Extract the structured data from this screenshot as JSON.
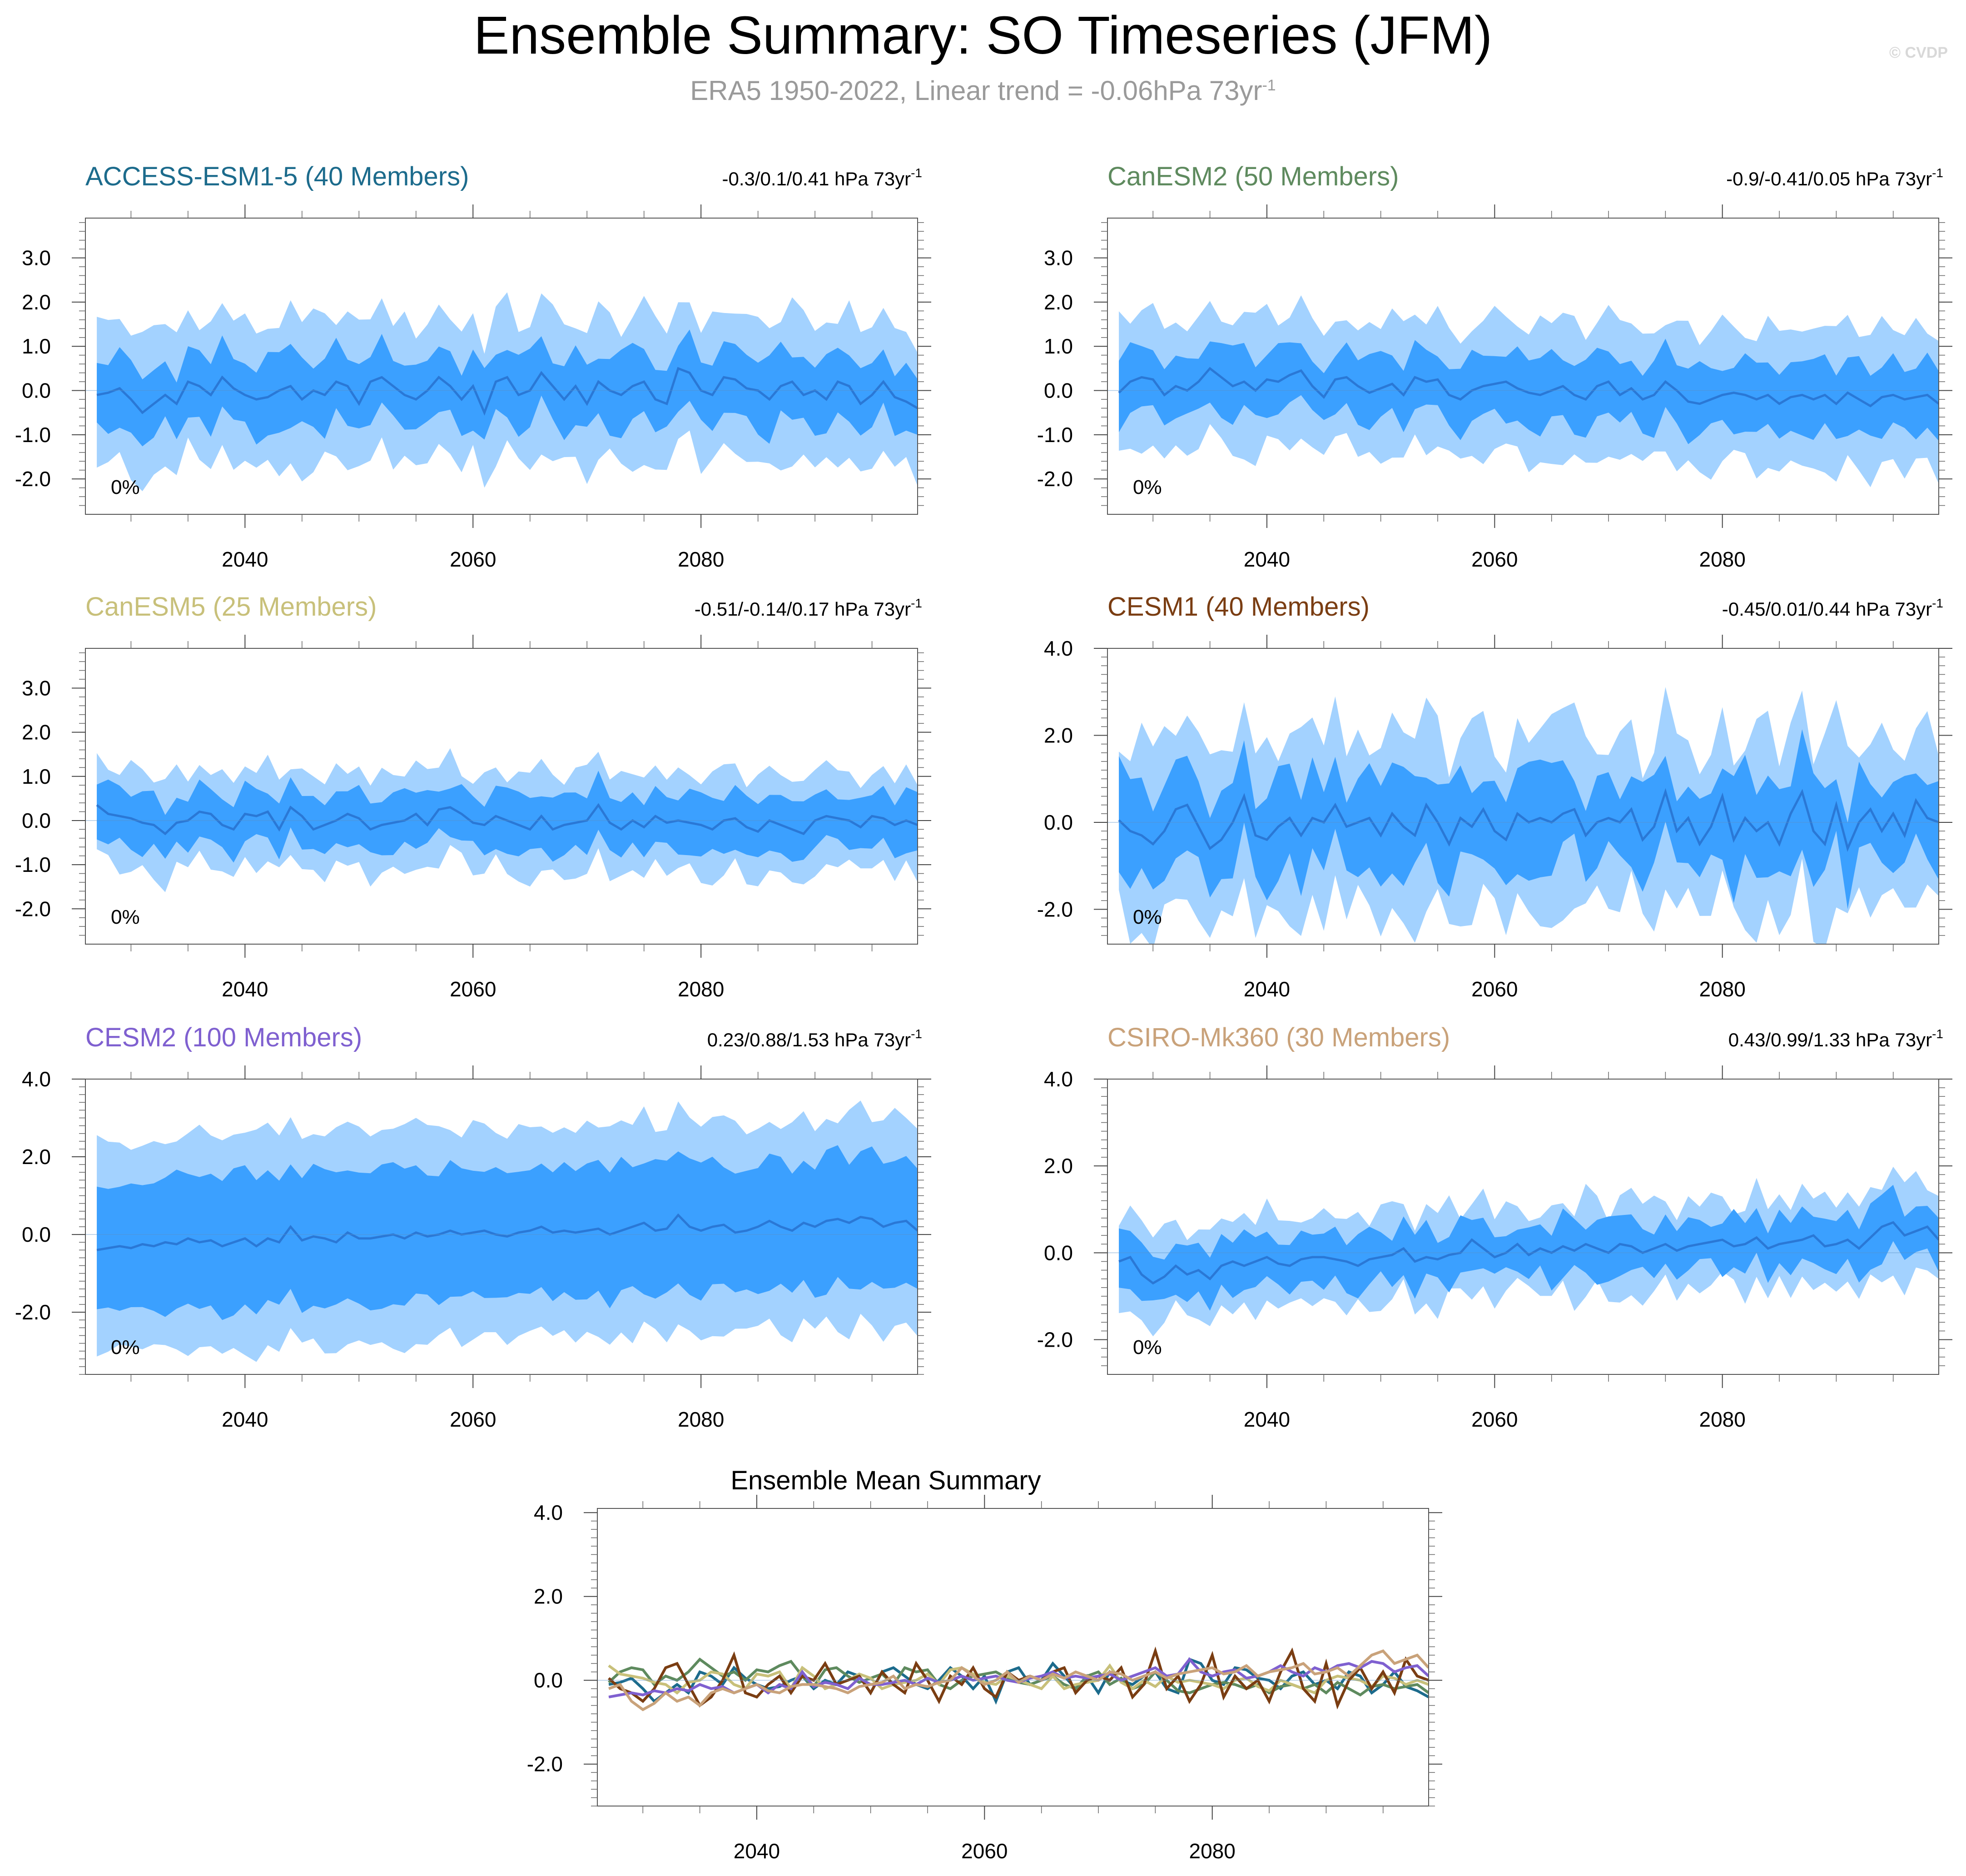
{
  "title": "Ensemble Summary: SO Timeseries (JFM)",
  "subtitle": "ERA5 1950-2022, Linear trend = -0.06hPa 73yr",
  "subtitle_sup": "-1",
  "copyright": "© CVDP",
  "colors": {
    "outer_band": "#a3d2ff",
    "inner_band": "#3ba0ff",
    "mean_line": "#2a78d6",
    "axis": "#000000",
    "access": "#1c6b8c",
    "canesm2": "#5e8a5e",
    "canesm5": "#c8c07a",
    "cesm1": "#7a3d12",
    "cesm2": "#7f60d0",
    "csiro": "#c9a27a"
  },
  "chart_data": [
    {
      "type": "area",
      "id": "access",
      "title": "ACCESS-ESM1-5 (40 Members)",
      "title_color": "#1c6b8c",
      "trend_label": "-0.3/0.1/0.41 hPa 73yr",
      "trend_sup": "-1",
      "percent_label": "0%",
      "xlim": [
        2026,
        2099
      ],
      "ylim": [
        -2.8,
        3.9
      ],
      "xticks": [
        2040,
        2060,
        2080
      ],
      "xtick_labels": [
        "2040",
        "2060",
        "2080"
      ],
      "yticks": [
        -2,
        -1,
        0,
        1,
        2,
        3
      ],
      "ytick_labels": [
        "-2.0",
        "-1.0",
        "0.0",
        "1.0",
        "2.0",
        "3.0"
      ],
      "x_start": 2027,
      "x_end": 2099,
      "mean": [
        -0.1,
        -0.05,
        0.05,
        -0.2,
        -0.5,
        -0.3,
        -0.1,
        -0.3,
        0.2,
        0.1,
        -0.1,
        0.3,
        0.05,
        -0.1,
        -0.2,
        -0.15,
        0.0,
        0.1,
        -0.2,
        0.0,
        -0.1,
        0.2,
        0.1,
        -0.3,
        0.2,
        0.3,
        0.1,
        -0.1,
        -0.2,
        0.0,
        0.3,
        0.1,
        -0.2,
        0.1,
        -0.5,
        0.2,
        0.3,
        -0.1,
        0.0,
        0.4,
        0.1,
        -0.2,
        0.1,
        -0.3,
        0.2,
        0.0,
        -0.1,
        0.1,
        0.2,
        -0.2,
        -0.3,
        0.5,
        0.4,
        0.0,
        -0.1,
        0.3,
        0.25,
        0.05,
        0.0,
        -0.2,
        0.1,
        0.2,
        -0.1,
        0.0,
        -0.2,
        0.2,
        0.1,
        -0.3,
        -0.1,
        0.2,
        -0.15,
        -0.25,
        -0.4
      ],
      "inner_halfwidth": 0.75,
      "outer_halfwidth": 1.6,
      "variability": 0.35
    },
    {
      "type": "area",
      "id": "canesm2",
      "title": "CanESM2 (50 Members)",
      "title_color": "#5e8a5e",
      "trend_label": "-0.9/-0.41/0.05 hPa 73yr",
      "trend_sup": "-1",
      "percent_label": "0%",
      "xlim": [
        2026,
        2099
      ],
      "ylim": [
        -2.8,
        3.9
      ],
      "xticks": [
        2040,
        2060,
        2080
      ],
      "xtick_labels": [
        "2040",
        "2060",
        "2080"
      ],
      "yticks": [
        -2,
        -1,
        0,
        1,
        2,
        3
      ],
      "ytick_labels": [
        "-2.0",
        "-1.0",
        "0.0",
        "1.0",
        "2.0",
        "3.0"
      ],
      "x_start": 2027,
      "x_end": 2099,
      "mean": [
        -0.05,
        0.2,
        0.3,
        0.25,
        -0.1,
        0.1,
        0.0,
        0.2,
        0.5,
        0.3,
        0.1,
        0.2,
        0.0,
        0.25,
        0.2,
        0.35,
        0.45,
        0.1,
        -0.15,
        0.25,
        0.3,
        0.1,
        -0.05,
        0.05,
        0.15,
        -0.1,
        0.3,
        0.2,
        0.25,
        -0.1,
        -0.2,
        0.0,
        0.1,
        0.15,
        0.2,
        0.05,
        -0.05,
        -0.1,
        0.0,
        0.1,
        -0.1,
        -0.2,
        0.1,
        0.2,
        -0.1,
        0.05,
        -0.2,
        -0.1,
        0.2,
        0.0,
        -0.25,
        -0.3,
        -0.2,
        -0.1,
        -0.05,
        -0.1,
        -0.2,
        -0.1,
        -0.3,
        -0.15,
        -0.1,
        -0.2,
        -0.1,
        -0.3,
        -0.05,
        -0.2,
        -0.35,
        -0.15,
        -0.1,
        -0.2,
        -0.15,
        -0.1,
        -0.3
      ],
      "inner_halfwidth": 0.75,
      "outer_halfwidth": 1.55,
      "variability": 0.3
    },
    {
      "type": "area",
      "id": "canesm5",
      "title": "CanESM5 (25 Members)",
      "title_color": "#c8c07a",
      "trend_label": "-0.51/-0.14/0.17 hPa 73yr",
      "trend_sup": "-1",
      "percent_label": "0%",
      "xlim": [
        2026,
        2099
      ],
      "ylim": [
        -2.8,
        3.9
      ],
      "xticks": [
        2040,
        2060,
        2080
      ],
      "xtick_labels": [
        "2040",
        "2060",
        "2080"
      ],
      "yticks": [
        -2,
        -1,
        0,
        1,
        2,
        3
      ],
      "ytick_labels": [
        "-2.0",
        "-1.0",
        "0.0",
        "1.0",
        "2.0",
        "3.0"
      ],
      "x_start": 2027,
      "x_end": 2099,
      "mean": [
        0.35,
        0.15,
        0.1,
        0.05,
        -0.05,
        -0.1,
        -0.3,
        -0.05,
        0.0,
        0.2,
        0.15,
        -0.1,
        -0.2,
        0.15,
        0.1,
        0.2,
        -0.2,
        0.3,
        0.1,
        -0.2,
        -0.1,
        0.0,
        0.15,
        0.05,
        -0.2,
        -0.1,
        -0.05,
        0.0,
        0.15,
        -0.1,
        0.25,
        0.3,
        0.15,
        -0.05,
        -0.1,
        0.1,
        0.0,
        -0.1,
        -0.2,
        0.1,
        -0.2,
        -0.1,
        -0.05,
        0.0,
        0.35,
        -0.05,
        -0.2,
        0.0,
        -0.15,
        0.1,
        -0.05,
        0.0,
        -0.05,
        -0.1,
        -0.2,
        0.0,
        0.05,
        -0.15,
        -0.25,
        0.0,
        -0.1,
        -0.2,
        -0.3,
        0.0,
        0.1,
        0.05,
        0.0,
        -0.15,
        0.1,
        0.05,
        -0.1,
        0.0,
        -0.1
      ],
      "inner_halfwidth": 0.6,
      "outer_halfwidth": 1.1,
      "variability": 0.25
    },
    {
      "type": "area",
      "id": "cesm1",
      "title": "CESM1 (40 Members)",
      "title_color": "#7a3d12",
      "trend_label": "-0.45/0.01/0.44 hPa 73yr",
      "trend_sup": "-1",
      "percent_label": "0%",
      "xlim": [
        2026,
        2099
      ],
      "ylim": [
        -2.8,
        4.0
      ],
      "xticks": [
        2040,
        2060,
        2080
      ],
      "xtick_labels": [
        "2040",
        "2060",
        "2080"
      ],
      "yticks": [
        -2,
        0,
        2,
        4
      ],
      "ytick_labels": [
        "-2.0",
        "0.0",
        "2.0",
        "4.0"
      ],
      "x_start": 2027,
      "x_end": 2099,
      "mean": [
        0.05,
        -0.2,
        -0.3,
        -0.5,
        -0.2,
        0.3,
        0.4,
        -0.1,
        -0.6,
        -0.4,
        0.0,
        0.6,
        -0.3,
        -0.4,
        -0.1,
        0.1,
        -0.3,
        0.1,
        0.0,
        0.4,
        -0.1,
        0.0,
        0.1,
        -0.3,
        0.2,
        -0.1,
        -0.3,
        0.4,
        0.0,
        -0.5,
        0.1,
        -0.1,
        0.3,
        -0.2,
        -0.4,
        0.2,
        0.0,
        0.1,
        0.0,
        0.2,
        0.3,
        -0.3,
        0.0,
        0.1,
        0.0,
        0.3,
        -0.4,
        -0.1,
        0.7,
        -0.2,
        0.1,
        -0.5,
        -0.1,
        0.6,
        -0.4,
        0.1,
        -0.2,
        0.0,
        -0.5,
        0.2,
        0.7,
        -0.2,
        -0.5,
        0.4,
        -0.6,
        0.0,
        0.3,
        -0.2,
        0.2,
        -0.3,
        0.5,
        0.1,
        0.0
      ],
      "inner_halfwidth": 1.0,
      "outer_halfwidth": 2.0,
      "variability": 0.6
    },
    {
      "type": "area",
      "id": "cesm2",
      "title": "CESM2 (100 Members)",
      "title_color": "#7f60d0",
      "trend_label": "0.23/0.88/1.53 hPa 73yr",
      "trend_sup": "-1",
      "percent_label": "0%",
      "xlim": [
        2026,
        2099
      ],
      "ylim": [
        -3.6,
        4.0
      ],
      "xticks": [
        2040,
        2060,
        2080
      ],
      "xtick_labels": [
        "2040",
        "2060",
        "2080"
      ],
      "yticks": [
        -2,
        0,
        2,
        4
      ],
      "ytick_labels": [
        "-2.0",
        "0.0",
        "2.0",
        "4.0"
      ],
      "x_start": 2027,
      "x_end": 2099,
      "mean": [
        -0.4,
        -0.35,
        -0.3,
        -0.35,
        -0.25,
        -0.3,
        -0.2,
        -0.25,
        -0.1,
        -0.2,
        -0.15,
        -0.3,
        -0.2,
        -0.1,
        -0.3,
        -0.1,
        -0.2,
        0.2,
        -0.15,
        -0.05,
        -0.1,
        -0.2,
        0.05,
        -0.1,
        -0.1,
        -0.05,
        0.0,
        -0.1,
        0.05,
        -0.05,
        0.0,
        0.1,
        0.0,
        0.05,
        0.1,
        0.0,
        -0.05,
        0.05,
        0.1,
        0.2,
        0.05,
        0.1,
        0.05,
        0.1,
        0.15,
        0.0,
        0.1,
        0.2,
        0.3,
        0.1,
        0.15,
        0.5,
        0.2,
        0.1,
        0.2,
        0.25,
        0.05,
        0.1,
        0.2,
        0.35,
        0.2,
        0.1,
        0.3,
        0.2,
        0.35,
        0.4,
        0.3,
        0.45,
        0.4,
        0.2,
        0.3,
        0.35,
        0.1
      ],
      "inner_halfwidth": 1.7,
      "outer_halfwidth": 2.75,
      "variability": 0.3
    },
    {
      "type": "area",
      "id": "csiro",
      "title": "CSIRO-Mk360 (30 Members)",
      "title_color": "#c9a27a",
      "trend_label": "0.43/0.99/1.33 hPa 73yr",
      "trend_sup": "-1",
      "percent_label": "0%",
      "xlim": [
        2026,
        2099
      ],
      "ylim": [
        -2.8,
        4.0
      ],
      "xticks": [
        2040,
        2060,
        2080
      ],
      "xtick_labels": [
        "2040",
        "2060",
        "2080"
      ],
      "yticks": [
        -2,
        0,
        2,
        4
      ],
      "ytick_labels": [
        "-2.0",
        "0.0",
        "2.0",
        "4.0"
      ],
      "x_start": 2027,
      "x_end": 2099,
      "mean": [
        -0.2,
        -0.1,
        -0.5,
        -0.7,
        -0.55,
        -0.3,
        -0.5,
        -0.4,
        -0.6,
        -0.3,
        -0.2,
        -0.3,
        -0.2,
        -0.1,
        -0.25,
        -0.3,
        -0.15,
        -0.1,
        -0.1,
        -0.15,
        -0.2,
        -0.3,
        -0.15,
        -0.1,
        -0.05,
        0.1,
        -0.2,
        -0.1,
        -0.15,
        -0.05,
        0.0,
        0.3,
        0.1,
        -0.1,
        0.0,
        0.2,
        -0.05,
        0.1,
        0.0,
        0.15,
        0.05,
        0.2,
        0.1,
        0.0,
        0.2,
        0.15,
        0.0,
        0.1,
        0.2,
        0.05,
        0.15,
        0.2,
        0.25,
        0.3,
        0.15,
        0.2,
        0.35,
        0.1,
        0.2,
        0.25,
        0.3,
        0.4,
        0.15,
        0.2,
        0.3,
        0.1,
        0.35,
        0.6,
        0.7,
        0.4,
        0.5,
        0.6,
        0.3
      ],
      "inner_halfwidth": 0.6,
      "outer_halfwidth": 1.05,
      "variability": 0.35
    },
    {
      "type": "line",
      "id": "mean_summary",
      "title": "Ensemble Mean Summary",
      "xlim": [
        2026,
        2099
      ],
      "ylim": [
        -3.0,
        4.1
      ],
      "xticks": [
        2040,
        2060,
        2080
      ],
      "xtick_labels": [
        "2040",
        "2060",
        "2080"
      ],
      "yticks": [
        -2,
        0,
        2,
        4
      ],
      "ytick_labels": [
        "-2.0",
        "0.0",
        "2.0",
        "4.0"
      ],
      "x_start": 2027,
      "x_end": 2099,
      "series": [
        {
          "name": "ACCESS-ESM1-5",
          "color": "#1c6b8c",
          "ref": "access"
        },
        {
          "name": "CanESM2",
          "color": "#5e8a5e",
          "ref": "canesm2"
        },
        {
          "name": "CanESM5",
          "color": "#c8c07a",
          "ref": "canesm5"
        },
        {
          "name": "CESM1",
          "color": "#7a3d12",
          "ref": "cesm1"
        },
        {
          "name": "CESM2",
          "color": "#7f60d0",
          "ref": "cesm2"
        },
        {
          "name": "CSIRO-Mk360",
          "color": "#c9a27a",
          "ref": "csiro"
        }
      ]
    }
  ]
}
